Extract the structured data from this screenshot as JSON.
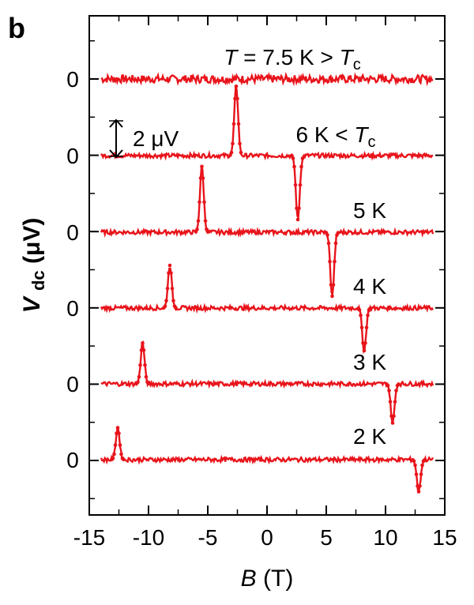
{
  "panel_label": "b",
  "chart_data": {
    "type": "line",
    "xlabel": {
      "symbol": "B",
      "unit": "(T)"
    },
    "ylabel": {
      "symbol": "V",
      "subscript": "dc",
      "unit": "(μV)"
    },
    "xlim": [
      -15,
      15
    ],
    "x_ticks": [
      -15,
      -10,
      -5,
      0,
      5,
      10,
      15
    ],
    "x_tick_labels": [
      "-15",
      "-10",
      "-5",
      "0",
      "5",
      "10",
      "15"
    ],
    "y_tick_labels": [
      "0",
      "0",
      "0",
      "0",
      "0",
      "0"
    ],
    "scale_bar_label": "2 μV",
    "scale_bar_uV": 2,
    "data_range_T": [
      -14,
      14
    ],
    "color": "#e8141b",
    "series": [
      {
        "label_prefix": "T",
        "label_main": " = 7.5 K >",
        "label_symbol": "T",
        "label_sub": "c",
        "peaks": []
      },
      {
        "label_prefix": "",
        "label_main": "6 K <",
        "label_symbol": "T",
        "label_sub": "c",
        "peaks": [
          {
            "B": -2.6,
            "V": 3.9
          },
          {
            "B": 2.6,
            "V": -3.6
          }
        ]
      },
      {
        "label_prefix": "",
        "label_main": "5 K",
        "label_symbol": "",
        "label_sub": "",
        "peaks": [
          {
            "B": -5.5,
            "V": 3.7
          },
          {
            "B": 5.5,
            "V": -3.6
          }
        ]
      },
      {
        "label_prefix": "",
        "label_main": "4 K",
        "label_symbol": "",
        "label_sub": "",
        "peaks": [
          {
            "B": -8.2,
            "V": 2.4
          },
          {
            "B": 8.2,
            "V": -2.4
          }
        ]
      },
      {
        "label_prefix": "",
        "label_main": "3 K",
        "label_symbol": "",
        "label_sub": "",
        "peaks": [
          {
            "B": -10.5,
            "V": 2.3
          },
          {
            "B": 10.6,
            "V": -2.2
          }
        ]
      },
      {
        "label_prefix": "",
        "label_main": "2 K",
        "label_symbol": "",
        "label_sub": "",
        "peaks": [
          {
            "B": -12.6,
            "V": 1.8
          },
          {
            "B": 12.8,
            "V": -1.8
          }
        ]
      }
    ]
  }
}
